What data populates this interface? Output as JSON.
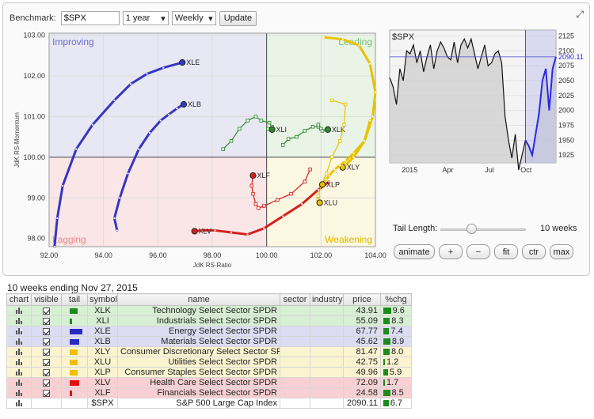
{
  "controls": {
    "benchmark_label": "Benchmark:",
    "benchmark_value": "$SPX",
    "period_value": "1 year",
    "interval_value": "Weekly",
    "update_label": "Update"
  },
  "rrg": {
    "x_label": "JdK RS-Ratio",
    "y_label": "JdK RS-Momentum",
    "x_ticks": [
      "92.00",
      "94.00",
      "96.00",
      "98.00",
      "100.00",
      "102.00",
      "104.00"
    ],
    "y_ticks": [
      "103.00",
      "102.00",
      "101.00",
      "100.00",
      "99.00",
      "98.00"
    ],
    "quadrants": {
      "improving": "Improving",
      "leading": "Leading",
      "weakening": "Weakening",
      "lagging": "Lagging"
    },
    "colors": {
      "improving_bg": "#e8e8f4",
      "leading_bg": "#e9f4e7",
      "weakening_bg": "#fbf7e1",
      "lagging_bg": "#fbe6e7",
      "improving_text": "#6b6bd0",
      "leading_text": "#7bbd75",
      "weakening_text": "#e2b700",
      "lagging_text": "#e58a90"
    },
    "series": [
      {
        "symbol": "XLE",
        "color": "#3535c4",
        "style": "smooth",
        "points": [
          [
            92.2,
            97.8
          ],
          [
            92.3,
            98.5
          ],
          [
            92.5,
            99.3
          ],
          [
            93.0,
            100.2
          ],
          [
            93.6,
            100.8
          ],
          [
            94.4,
            101.4
          ],
          [
            95.0,
            101.8
          ],
          [
            95.6,
            102.05
          ],
          [
            96.2,
            102.2
          ],
          [
            96.9,
            102.33
          ]
        ]
      },
      {
        "symbol": "XLB",
        "color": "#3535c4",
        "style": "smooth",
        "points": [
          [
            94.5,
            98.2
          ],
          [
            94.4,
            98.5
          ],
          [
            94.6,
            99.0
          ],
          [
            94.9,
            99.6
          ],
          [
            95.3,
            100.2
          ],
          [
            95.7,
            100.6
          ],
          [
            96.1,
            100.9
          ],
          [
            96.4,
            101.05
          ],
          [
            96.7,
            101.2
          ],
          [
            96.95,
            101.3
          ]
        ]
      },
      {
        "symbol": "XLI",
        "color": "#2e8b2e",
        "style": "marked",
        "points": [
          [
            98.4,
            100.2
          ],
          [
            98.7,
            100.4
          ],
          [
            99.0,
            100.7
          ],
          [
            99.3,
            100.9
          ],
          [
            99.6,
            101.0
          ],
          [
            99.8,
            100.9
          ],
          [
            100.1,
            100.85
          ],
          [
            100.2,
            100.75
          ],
          [
            100.05,
            100.7
          ],
          [
            100.2,
            100.68
          ]
        ]
      },
      {
        "symbol": "XLK",
        "color": "#2e8b2e",
        "style": "marked",
        "points": [
          [
            100.6,
            100.3
          ],
          [
            100.8,
            100.45
          ],
          [
            101.1,
            100.5
          ],
          [
            101.4,
            100.65
          ],
          [
            101.7,
            100.75
          ],
          [
            101.9,
            100.75
          ],
          [
            101.9,
            100.8
          ],
          [
            102.0,
            100.7
          ],
          [
            102.05,
            100.65
          ],
          [
            102.25,
            100.68
          ]
        ]
      },
      {
        "symbol": "XLF",
        "color": "#d42020",
        "style": "marked",
        "points": [
          [
            101.6,
            99.7
          ],
          [
            101.4,
            99.4
          ],
          [
            100.9,
            99.1
          ],
          [
            100.4,
            98.95
          ],
          [
            99.9,
            98.8
          ],
          [
            99.7,
            98.75
          ],
          [
            99.6,
            98.85
          ],
          [
            99.5,
            99.1
          ],
          [
            99.45,
            99.3
          ],
          [
            99.5,
            99.55
          ]
        ]
      },
      {
        "symbol": "XLV",
        "color": "#d42020",
        "style": "smooth",
        "points": [
          [
            102.3,
            99.4
          ],
          [
            101.9,
            99.2
          ],
          [
            101.3,
            98.85
          ],
          [
            100.6,
            98.55
          ],
          [
            99.9,
            98.25
          ],
          [
            99.3,
            98.1
          ],
          [
            98.7,
            98.15
          ],
          [
            98.1,
            98.2
          ],
          [
            97.6,
            98.2
          ],
          [
            97.35,
            98.18
          ]
        ]
      },
      {
        "symbol": "XLY",
        "color": "#e8c200",
        "style": "smooth",
        "points": [
          [
            102.1,
            102.95
          ],
          [
            102.8,
            102.9
          ],
          [
            103.4,
            102.75
          ],
          [
            103.8,
            102.3
          ],
          [
            104.0,
            101.6
          ],
          [
            103.9,
            101.0
          ],
          [
            103.6,
            100.4
          ],
          [
            103.2,
            100.0
          ],
          [
            102.9,
            99.8
          ],
          [
            102.8,
            99.75
          ]
        ]
      },
      {
        "symbol": "XLU",
        "color": "#e8c200",
        "style": "marked",
        "points": [
          [
            102.4,
            101.4
          ],
          [
            102.9,
            101.3
          ],
          [
            102.85,
            100.8
          ],
          [
            102.7,
            100.4
          ],
          [
            102.4,
            100.0
          ],
          [
            102.2,
            99.6
          ],
          [
            102.0,
            99.3
          ],
          [
            101.9,
            99.05
          ],
          [
            101.9,
            98.95
          ],
          [
            101.95,
            98.88
          ]
        ]
      },
      {
        "symbol": "XLP",
        "color": "#e8c200",
        "style": "smooth",
        "points": [
          [
            103.8,
            100.9
          ],
          [
            103.6,
            100.4
          ],
          [
            103.2,
            100.1
          ],
          [
            102.9,
            99.9
          ],
          [
            102.7,
            99.8
          ],
          [
            102.5,
            99.7
          ],
          [
            102.3,
            99.55
          ],
          [
            102.2,
            99.45
          ],
          [
            102.1,
            99.38
          ],
          [
            102.05,
            99.33
          ]
        ]
      }
    ]
  },
  "price_chart": {
    "title": "$SPX",
    "last_value": "2090.11",
    "y_ticks": [
      "2125",
      "2100",
      "2075",
      "2050",
      "2025",
      "2000",
      "1975",
      "1950",
      "1925"
    ],
    "x_labels": [
      "2015",
      "Apr",
      "Jul",
      "Oct"
    ],
    "values": [
      2055,
      2040,
      2010,
      2070,
      2050,
      2100,
      2095,
      2110,
      2080,
      2100,
      2065,
      2090,
      2110,
      2070,
      2100,
      2115,
      2105,
      2090,
      2085,
      2115,
      2080,
      2110,
      2120,
      2105,
      2120,
      2095,
      2070,
      2090,
      2110,
      2075,
      2080,
      2095,
      2100,
      2080,
      1990,
      1950,
      1920,
      1960,
      1900,
      1925,
      1950,
      1940,
      1925,
      1960,
      1995,
      2050,
      2070,
      2000,
      2070,
      2090
    ],
    "highlight_from_index": 40
  },
  "tail": {
    "label": "Tail Length:",
    "value_text": "10 weeks",
    "slider_fraction": 0.35
  },
  "buttons": {
    "animate": "animate",
    "plus": "+",
    "minus": "−",
    "fit": "fit",
    "ctr": "ctr",
    "max": "max"
  },
  "caption": "10 weeks ending Nov 27, 2015",
  "table": {
    "headers": [
      "chart",
      "visible",
      "tail",
      "symbol",
      "name",
      "sector",
      "industry",
      "price",
      "%chg"
    ],
    "rows": [
      {
        "symbol": "XLK",
        "name": "Technology Select Sector SPDR",
        "sector": "",
        "industry": "",
        "price": "43.91",
        "chg": "9.6",
        "tail_color": "#1f8a1f",
        "tail_len": 10,
        "row_bg": "#d7efd3",
        "icon": "chart-icon"
      },
      {
        "symbol": "XLI",
        "name": "Industrials Select Sector SPDR",
        "sector": "",
        "industry": "",
        "price": "55.09",
        "chg": "8.3",
        "tail_color": "#1f8a1f",
        "tail_len": 3,
        "row_bg": "#d7efd3",
        "icon": "chart-icon"
      },
      {
        "symbol": "XLE",
        "name": "Energy Select Sector SPDR",
        "sector": "",
        "industry": "",
        "price": "67.77",
        "chg": "7.4",
        "tail_color": "#2a2ac0",
        "tail_len": 16,
        "row_bg": "#dcdcf3",
        "icon": "chart-icon"
      },
      {
        "symbol": "XLB",
        "name": "Materials Select Sector SPDR",
        "sector": "",
        "industry": "",
        "price": "45.62",
        "chg": "8.9",
        "tail_color": "#2a2ac0",
        "tail_len": 12,
        "row_bg": "#dcdcf3",
        "icon": "chart-icon"
      },
      {
        "symbol": "XLY",
        "name": "Consumer Discretionary Select Sector SPDR",
        "sector": "",
        "industry": "",
        "price": "81.47",
        "chg": "8.0",
        "tail_color": "#f0c000",
        "tail_len": 10,
        "row_bg": "#fbf4d0",
        "icon": "chart-icon"
      },
      {
        "symbol": "XLU",
        "name": "Utilities Select Sector SPDR",
        "sector": "",
        "industry": "",
        "price": "42.75",
        "chg": "1.2",
        "tail_color": "#f0c000",
        "tail_len": 10,
        "row_bg": "#fbf4d0",
        "icon": "chart-icon"
      },
      {
        "symbol": "XLP",
        "name": "Consumer Staples Select Sector SPDR",
        "sector": "",
        "industry": "",
        "price": "49.96",
        "chg": "5.9",
        "tail_color": "#f0c000",
        "tail_len": 10,
        "row_bg": "#fbf4d0",
        "icon": "chart-icon"
      },
      {
        "symbol": "XLV",
        "name": "Health Care Select Sector SPDR",
        "sector": "",
        "industry": "",
        "price": "72.09",
        "chg": "1.7",
        "tail_color": "#e01010",
        "tail_len": 12,
        "row_bg": "#f8d0d3",
        "icon": "chart-icon"
      },
      {
        "symbol": "XLF",
        "name": "Financials Select Sector SPDR",
        "sector": "",
        "industry": "",
        "price": "24.58",
        "chg": "8.5",
        "tail_color": "#e01010",
        "tail_len": 3,
        "row_bg": "#f8d0d3",
        "icon": "chart-icon"
      },
      {
        "symbol": "$SPX",
        "name": "S&P 500 Large Cap Index",
        "sector": "",
        "industry": "",
        "price": "2090.11",
        "chg": "6.7",
        "tail_color": "",
        "tail_len": 0,
        "row_bg": "#ffffff",
        "icon": "chart-icon",
        "no_visible": true
      }
    ]
  }
}
